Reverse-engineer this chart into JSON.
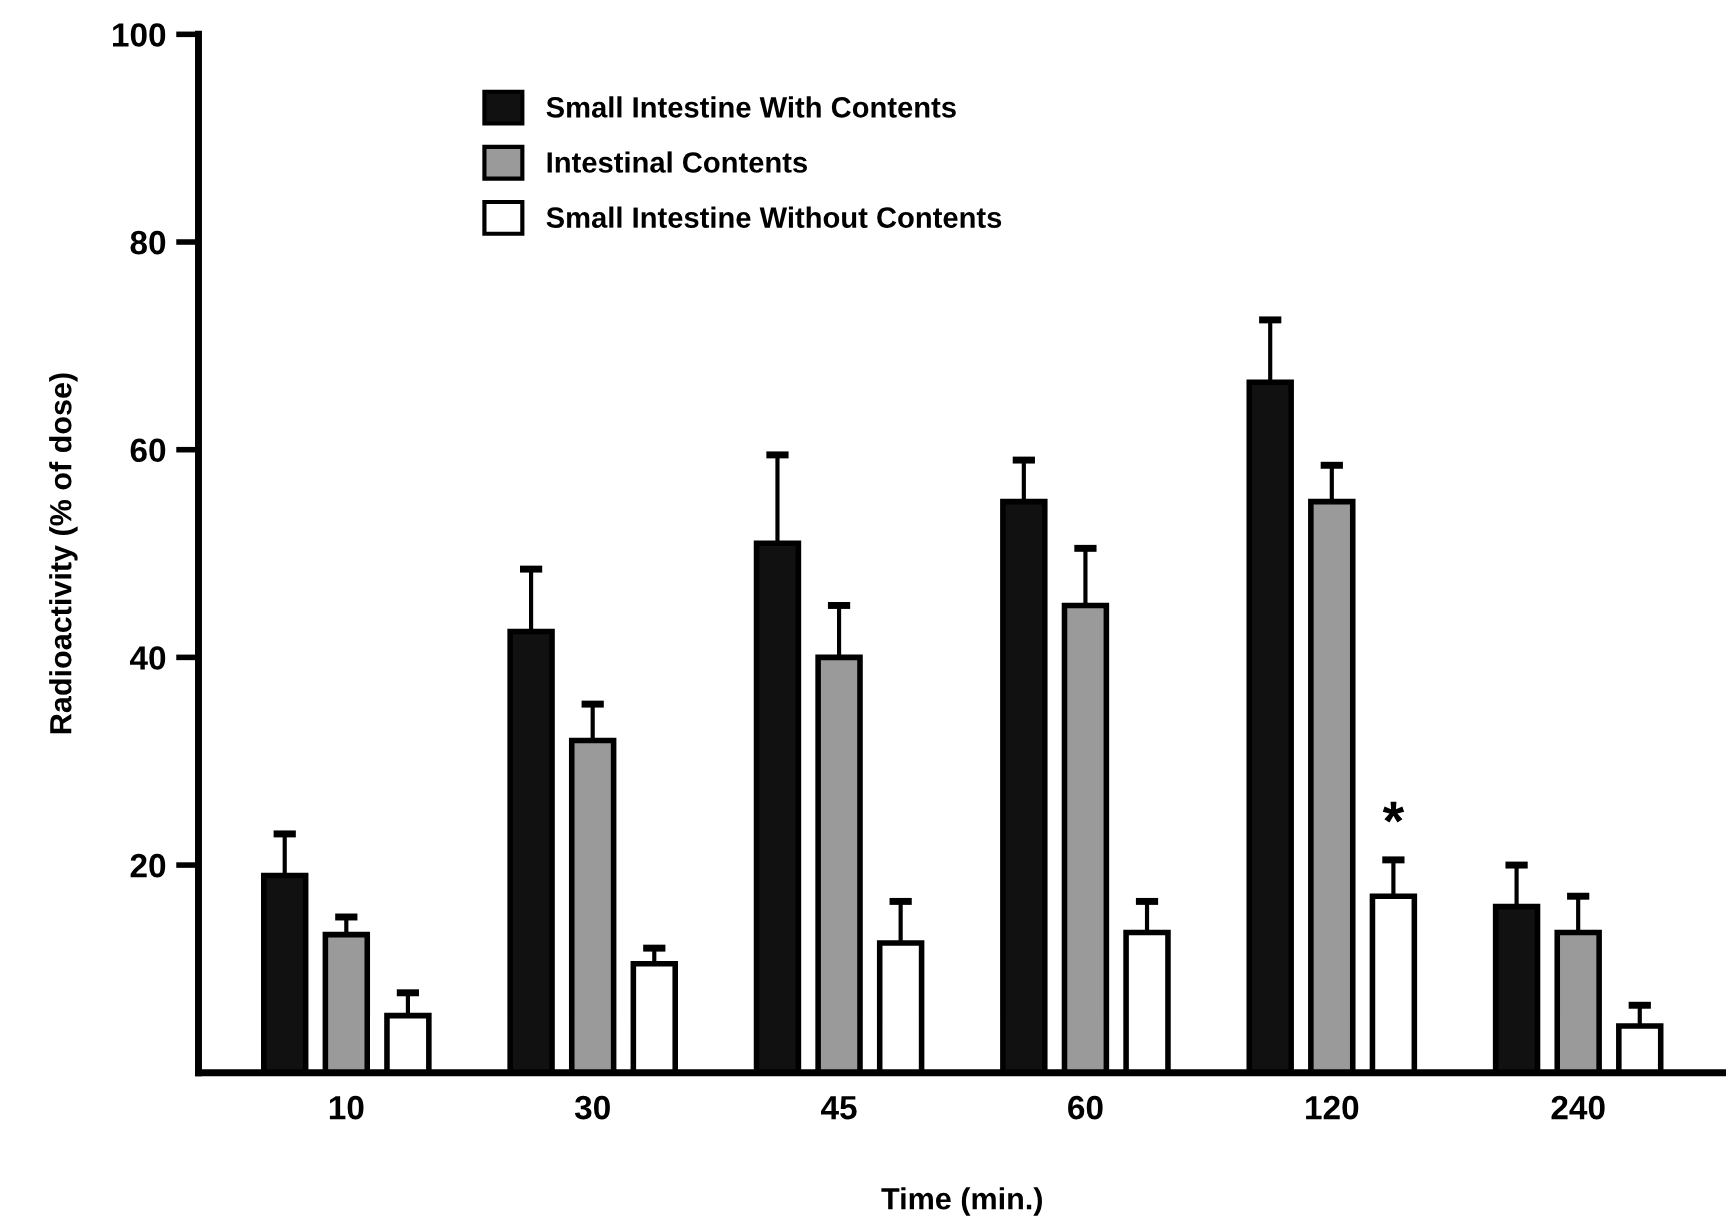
{
  "chart_data": {
    "type": "bar",
    "xlabel": "Time (min.)",
    "ylabel": "Radioactivity (% of dose)",
    "categories": [
      "10",
      "30",
      "45",
      "60",
      "120",
      "240"
    ],
    "series": [
      {
        "name": "Small Intestine With Contents",
        "color": "#111111",
        "values": [
          19,
          42.5,
          51,
          55,
          66.5,
          16
        ],
        "errors": [
          [
            19,
            23
          ],
          [
            42.5,
            48.5
          ],
          [
            51,
            59.5
          ],
          [
            55,
            59
          ],
          [
            66.5,
            72.5
          ],
          [
            16,
            20
          ]
        ]
      },
      {
        "name": "Intestinal Contents",
        "color": "#9a9a9a",
        "values": [
          13.3,
          32,
          40,
          45,
          55,
          13.5
        ],
        "errors": [
          [
            13.3,
            15
          ],
          [
            32,
            35.5
          ],
          [
            40,
            45
          ],
          [
            45,
            50.5
          ],
          [
            55,
            58.5
          ],
          [
            13.5,
            17
          ]
        ]
      },
      {
        "name": "Small Intestine Without Contents",
        "color": "#ffffff",
        "values": [
          5.5,
          10.5,
          12.5,
          13.5,
          17,
          4.5
        ],
        "errors": [
          [
            5.5,
            7.7
          ],
          [
            10.5,
            12
          ],
          [
            12.5,
            16.5
          ],
          [
            13.5,
            16.5
          ],
          [
            17,
            20.5
          ],
          [
            4.5,
            6.5
          ]
        ]
      }
    ],
    "annotations": [
      "*"
    ],
    "ylim": [
      0,
      100
    ],
    "yticks": [
      20,
      40,
      60,
      80,
      100
    ],
    "grid": false,
    "legend": "top left"
  }
}
